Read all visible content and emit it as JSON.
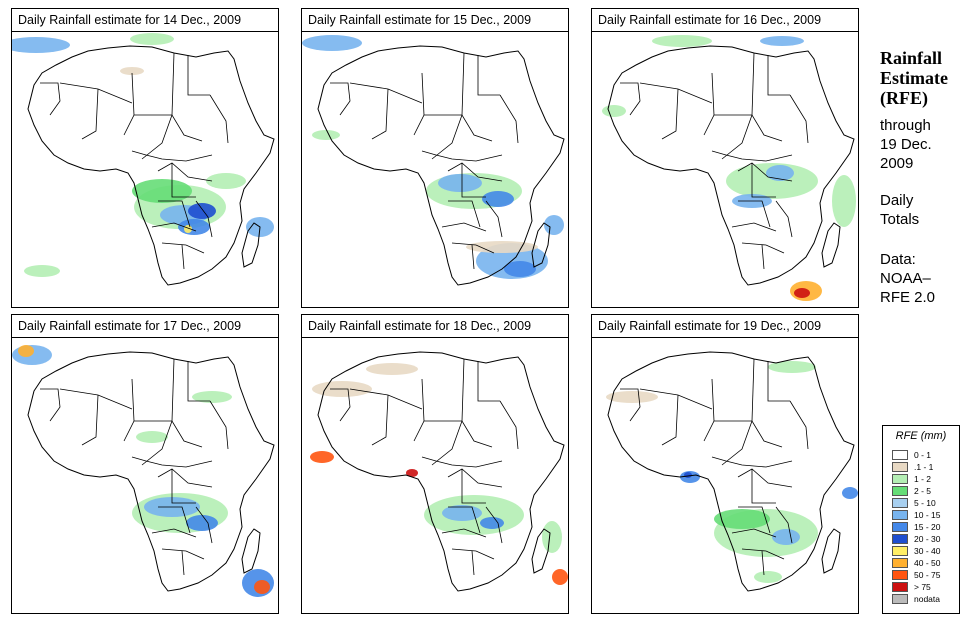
{
  "panels": [
    {
      "title": "Daily Rainfall estimate for  14 Dec., 2009",
      "day": "14"
    },
    {
      "title": "Daily Rainfall estimate for  15 Dec., 2009",
      "day": "15"
    },
    {
      "title": "Daily Rainfall estimate for  16 Dec., 2009",
      "day": "16"
    },
    {
      "title": "Daily Rainfall estimate for  17 Dec., 2009",
      "day": "17"
    },
    {
      "title": "Daily Rainfall estimate for  18 Dec., 2009",
      "day": "18"
    },
    {
      "title": "Daily Rainfall estimate for  19 Dec., 2009",
      "day": "19"
    }
  ],
  "side": {
    "title_line1": "Rainfall",
    "title_line2": "Estimate",
    "title_line3": "(RFE)",
    "through_line1": "through",
    "through_line2": "19 Dec.",
    "through_line3": "2009",
    "daily_line1": "Daily",
    "daily_line2": "Totals",
    "data_line1": "Data:",
    "data_line2": "NOAA–",
    "data_line3": "RFE 2.0"
  },
  "legend": {
    "title": "RFE (mm)",
    "items": [
      {
        "label": "0 - 1",
        "color": "#ffffff"
      },
      {
        "label": ".1 - 1",
        "color": "#e8d9c4"
      },
      {
        "label": "1 - 2",
        "color": "#b4eeb4"
      },
      {
        "label": "2 - 5",
        "color": "#66dd77"
      },
      {
        "label": "5 - 10",
        "color": "#a8d0f0"
      },
      {
        "label": "10 - 15",
        "color": "#78b4ee"
      },
      {
        "label": "15 - 20",
        "color": "#4488e8"
      },
      {
        "label": "20 - 30",
        "color": "#1f4fd0"
      },
      {
        "label": "30 - 40",
        "color": "#ffee66"
      },
      {
        "label": "40 - 50",
        "color": "#ffb030"
      },
      {
        "label": "50 - 75",
        "color": "#ff5511"
      },
      {
        "label": "> 75",
        "color": "#cc1111"
      },
      {
        "label": "nodata",
        "color": "#bbbbbb"
      }
    ]
  }
}
